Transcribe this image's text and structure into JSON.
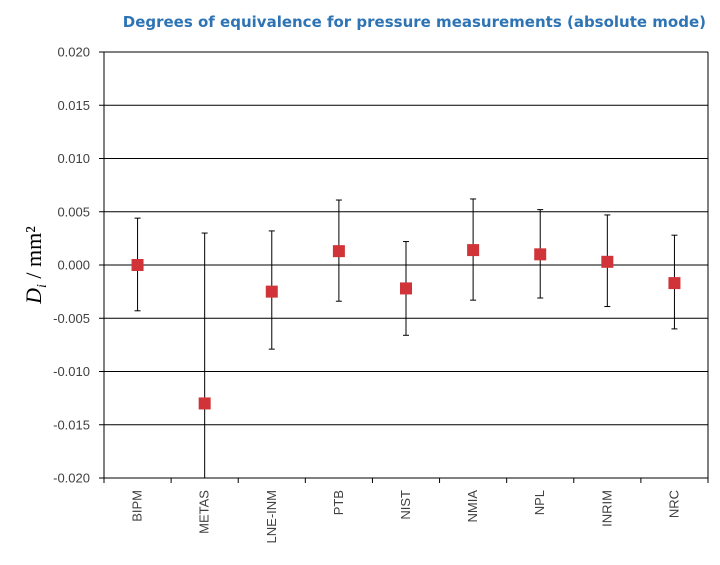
{
  "chart_data": {
    "type": "scatter",
    "title": "Degrees of equivalence for pressure measurements (absolute mode)",
    "ylabel": {
      "symbol": "D",
      "subscript": "i",
      "unit": " / mm²"
    },
    "xlabel": "",
    "categories": [
      "BIPM",
      "METAS",
      "LNE-INM",
      "PTB",
      "NIST",
      "NMIA",
      "NPL",
      "INRIM",
      "NRC"
    ],
    "values": [
      0.0,
      -0.013,
      -0.0025,
      0.0013,
      -0.0022,
      0.0014,
      0.001,
      0.0003,
      -0.0017
    ],
    "err_low": [
      -0.0043,
      -0.02,
      -0.0079,
      -0.0034,
      -0.0066,
      -0.0033,
      -0.0031,
      -0.0039,
      -0.006
    ],
    "err_high": [
      0.0044,
      0.003,
      0.0032,
      0.0061,
      0.0022,
      0.0062,
      0.0052,
      0.0047,
      0.0028
    ],
    "ylim": [
      -0.02,
      0.02
    ],
    "yticks": [
      "0.020",
      "0.015",
      "0.010",
      "0.005",
      "0.000",
      "-0.005",
      "-0.010",
      "-0.015",
      "-0.020"
    ],
    "ytick_values": [
      0.02,
      0.015,
      0.01,
      0.005,
      0.0,
      -0.005,
      -0.01,
      -0.015,
      -0.02
    ],
    "grid": true,
    "marker_color": "#d13438"
  }
}
